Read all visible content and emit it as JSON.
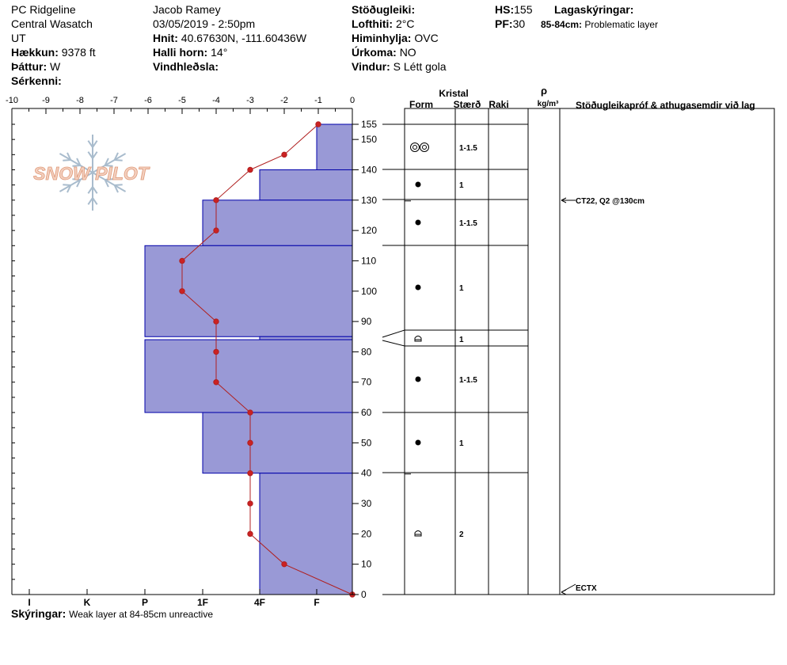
{
  "header": {
    "location": "PC Ridgeline",
    "range": "Central Wasatch",
    "state": "UT",
    "elevation_label": "Hækkun:",
    "elevation": "9378 ft",
    "aspect_label": "Þáttur:",
    "aspect": "W",
    "features_label": "Sérkenni:",
    "observer": "Jacob Ramey",
    "datetime": "03/05/2019 - 2:50pm",
    "coords_label": "Hnit:",
    "coords": "40.67630N, -111.60436W",
    "slope_label": "Halli horn:",
    "slope": "14°",
    "wind_loading_label": "Vindhleðsla:",
    "stability_label": "Stöðugleiki:",
    "airtemp_label": "Lofthiti:",
    "airtemp": "2°C",
    "sky_label": "Himinhylja:",
    "sky": "OVC",
    "precip_label": "Úrkoma:",
    "precip": "NO",
    "wind_label": "Vindur:",
    "wind": "S Létt gola",
    "hs_label": "HS:",
    "hs": "155",
    "pf_label": "PF:",
    "pf": "30",
    "layer_notes_label": "Lagaskýringar:",
    "layer_note_depth": "85-84cm:",
    "layer_note_text": "Problematic layer",
    "notes_label": "Skýringar:",
    "notes": "Weak layer at 84-85cm unreactive"
  },
  "logo": {
    "text": "SNOW PILOT"
  },
  "columns": {
    "kristal": "Kristal",
    "form": "Form",
    "size": "Stærð",
    "moisture": "Raki",
    "rho": "ρ",
    "density_unit": "kg/m³",
    "tests": "Stöðugleikapróf & athugasemdir við lag"
  },
  "colors": {
    "hardness_fill": "#9999d6",
    "hardness_stroke": "#0000aa",
    "temp_line": "#b02020",
    "temp_point": "#cc2222"
  },
  "chart_data": {
    "type": "snow-profile",
    "temperature_axis": {
      "min": -10,
      "max": 0,
      "ticks": [
        -10,
        -9,
        -8,
        -7,
        -6,
        -5,
        -4,
        -3,
        -2,
        -1,
        0
      ]
    },
    "height_axis": {
      "min": 0,
      "max": 155,
      "ticks": [
        0,
        10,
        20,
        30,
        40,
        50,
        60,
        70,
        80,
        90,
        100,
        110,
        120,
        130,
        140,
        150,
        155
      ]
    },
    "hardness_axis": {
      "labels": [
        "I",
        "K",
        "P",
        "1F",
        "4F",
        "F"
      ]
    },
    "temperature_profile": [
      {
        "height": 0,
        "temp": 0
      },
      {
        "height": 10,
        "temp": -2
      },
      {
        "height": 20,
        "temp": -3
      },
      {
        "height": 30,
        "temp": -3
      },
      {
        "height": 40,
        "temp": -3
      },
      {
        "height": 50,
        "temp": -3
      },
      {
        "height": 60,
        "temp": -3
      },
      {
        "height": 70,
        "temp": -4
      },
      {
        "height": 80,
        "temp": -4
      },
      {
        "height": 90,
        "temp": -4
      },
      {
        "height": 100,
        "temp": -5
      },
      {
        "height": 110,
        "temp": -5
      },
      {
        "height": 120,
        "temp": -4
      },
      {
        "height": 130,
        "temp": -4
      },
      {
        "height": 140,
        "temp": -3
      },
      {
        "height": 145,
        "temp": -2
      },
      {
        "height": 155,
        "temp": -1
      }
    ],
    "layers": [
      {
        "top": 155,
        "bottom": 140,
        "hardness": "F",
        "form": "mf-cluster",
        "size": "1-1.5"
      },
      {
        "top": 140,
        "bottom": 130,
        "hardness": "4F",
        "form": "round",
        "size": "1"
      },
      {
        "top": 130,
        "bottom": 115,
        "hardness": "1F",
        "form": "round",
        "size": "1-1.5"
      },
      {
        "top": 115,
        "bottom": 85,
        "hardness": "P",
        "form": "round",
        "size": "1"
      },
      {
        "top": 85,
        "bottom": 84,
        "hardness": "4F",
        "form": "facet",
        "size": "1"
      },
      {
        "top": 84,
        "bottom": 60,
        "hardness": "P",
        "form": "round",
        "size": "1-1.5"
      },
      {
        "top": 60,
        "bottom": 40,
        "hardness": "1F",
        "form": "round",
        "size": "1"
      },
      {
        "top": 40,
        "bottom": 0,
        "hardness": "4F",
        "form": "facet",
        "size": "2"
      }
    ],
    "stability_tests": [
      {
        "height": 130,
        "text": "CT22, Q2 @130cm"
      },
      {
        "height": 0,
        "text": "ECTX"
      }
    ]
  }
}
